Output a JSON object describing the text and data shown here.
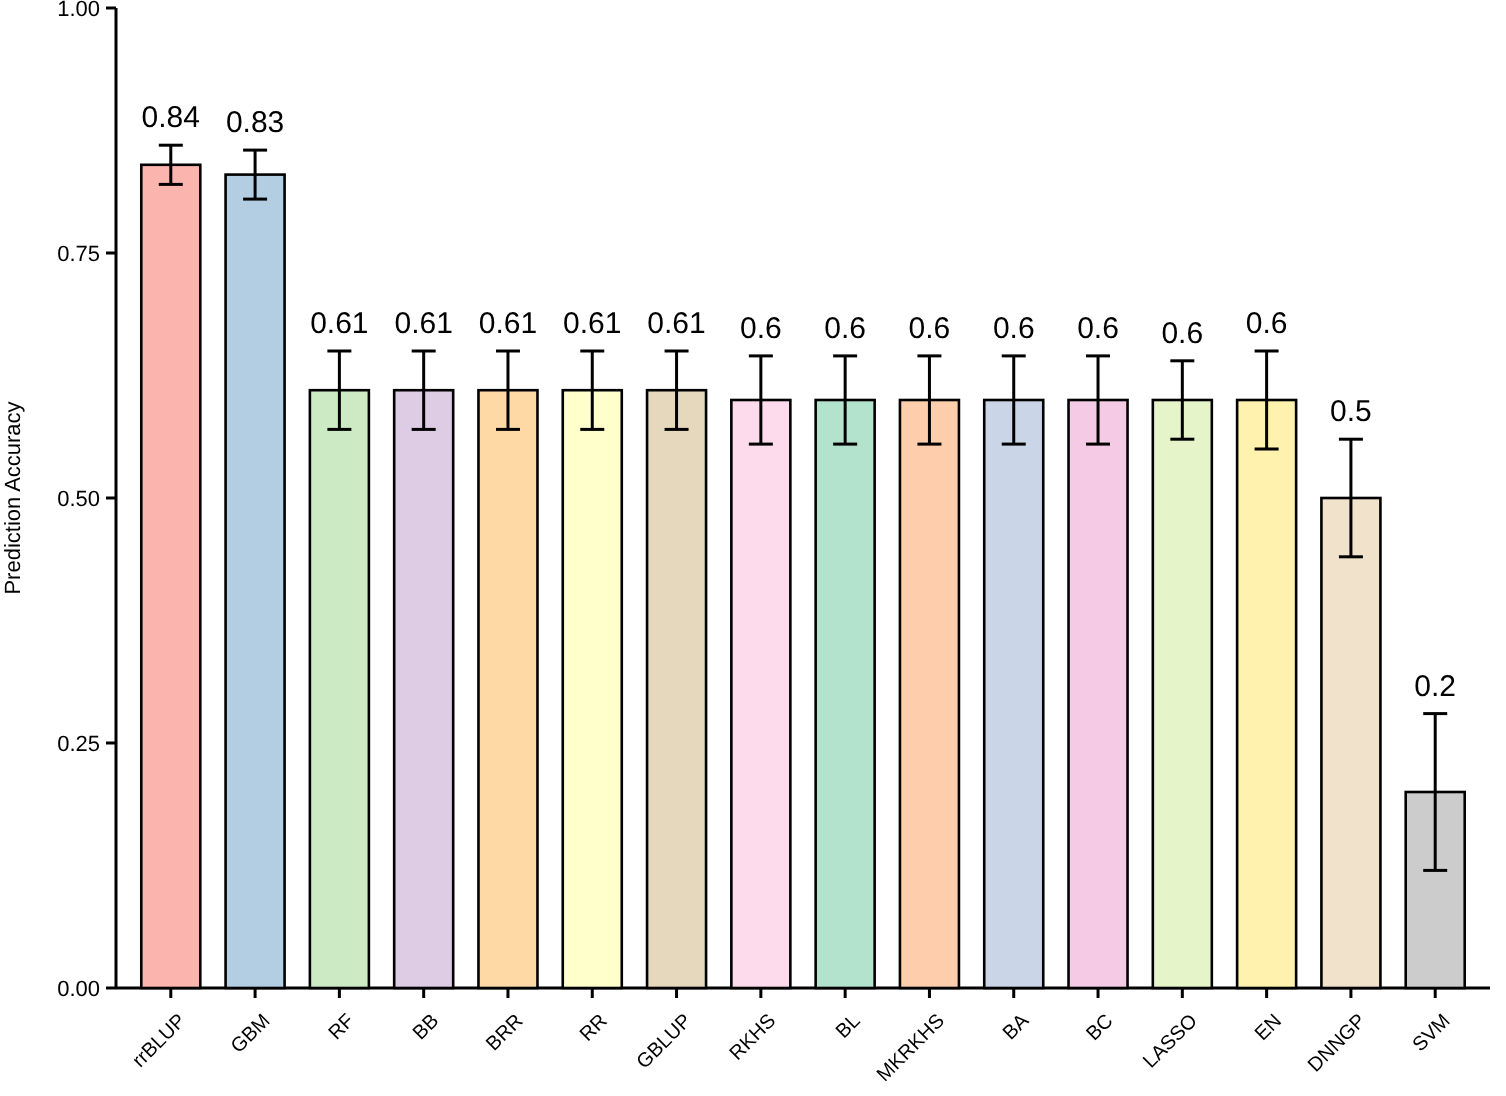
{
  "chart_data": {
    "type": "bar",
    "ylabel": "Prediction Accuracy",
    "categories": [
      "rrBLUP",
      "GBM",
      "RF",
      "BB",
      "BRR",
      "RR",
      "GBLUP",
      "RKHS",
      "BL",
      "MKRKHS",
      "BA",
      "BC",
      "LASSO",
      "EN",
      "DNNGP",
      "SVM"
    ],
    "values": [
      0.84,
      0.83,
      0.61,
      0.61,
      0.61,
      0.61,
      0.61,
      0.6,
      0.6,
      0.6,
      0.6,
      0.6,
      0.6,
      0.6,
      0.5,
      0.2
    ],
    "errors": [
      0.02,
      0.025,
      0.04,
      0.04,
      0.04,
      0.04,
      0.04,
      0.045,
      0.045,
      0.045,
      0.045,
      0.045,
      0.04,
      0.05,
      0.06,
      0.08
    ],
    "colors": [
      "#fbb4ae",
      "#b3cde3",
      "#ccebc5",
      "#decbe4",
      "#fed9a6",
      "#ffffcc",
      "#e5d8bd",
      "#fddaec",
      "#b3e2cd",
      "#fdcdac",
      "#cbd5e8",
      "#f4cae4",
      "#e6f5c9",
      "#fff2ae",
      "#f1e2cc",
      "#cccccc"
    ],
    "data_labels": true,
    "ylim": [
      0,
      1
    ],
    "yticks": [
      {
        "value": 0,
        "label": "0.00"
      },
      {
        "value": 0.25,
        "label": "0.25"
      },
      {
        "value": 0.5,
        "label": "0.50"
      },
      {
        "value": 0.75,
        "label": "0.75"
      },
      {
        "value": 1,
        "label": "1.00"
      }
    ],
    "grid": false
  }
}
